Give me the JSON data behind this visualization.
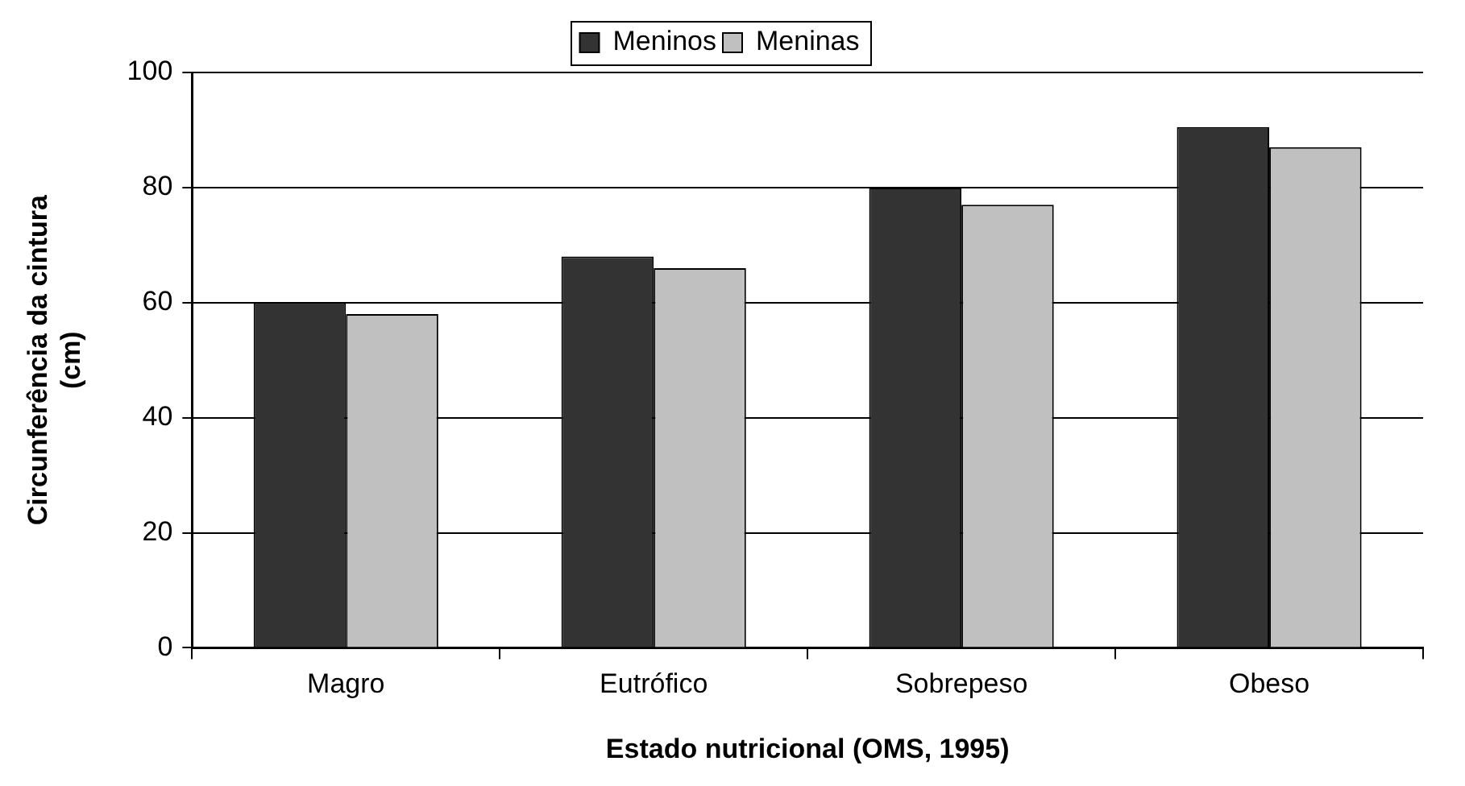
{
  "chart_data": {
    "type": "bar",
    "xlabel": "Estado nutricional (OMS, 1995)",
    "ylabel": "Circunferência da cintura\n(cm)",
    "categories": [
      "Magro",
      "Eutrófico",
      "Sobrepeso",
      "Obeso"
    ],
    "series": [
      {
        "name": "Meninos",
        "color": "#333333",
        "values": [
          60,
          68,
          80,
          90.5
        ]
      },
      {
        "name": "Meninas",
        "color": "#c0c0c0",
        "values": [
          58,
          66,
          77,
          87
        ]
      }
    ],
    "ylim": [
      0,
      100
    ],
    "yticks": [
      0,
      20,
      40,
      60,
      80,
      100
    ],
    "grid": "y",
    "legend": "top"
  }
}
